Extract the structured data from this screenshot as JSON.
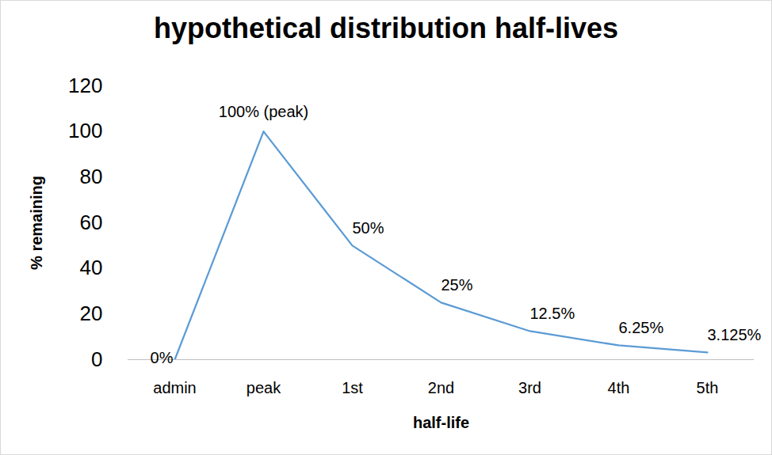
{
  "chart_data": {
    "type": "line",
    "title": "hypothetical distribution half-lives",
    "x_label": "half-life",
    "y_label": "% remaining",
    "categories": [
      "admin",
      "peak",
      "1st",
      "2nd",
      "3rd",
      "4th",
      "5th"
    ],
    "values": [
      0,
      100,
      50,
      25,
      12.5,
      6.25,
      3.125
    ],
    "value_labels": [
      "0%",
      "100% (peak)",
      "50%",
      "25%",
      "12.5%",
      "6.25%",
      "3.125%"
    ],
    "color": "#5b9bd5",
    "ylim": [
      0,
      120
    ],
    "yticks": [
      0,
      20,
      40,
      60,
      80,
      100,
      120
    ],
    "grid": false,
    "data_labels": true
  }
}
